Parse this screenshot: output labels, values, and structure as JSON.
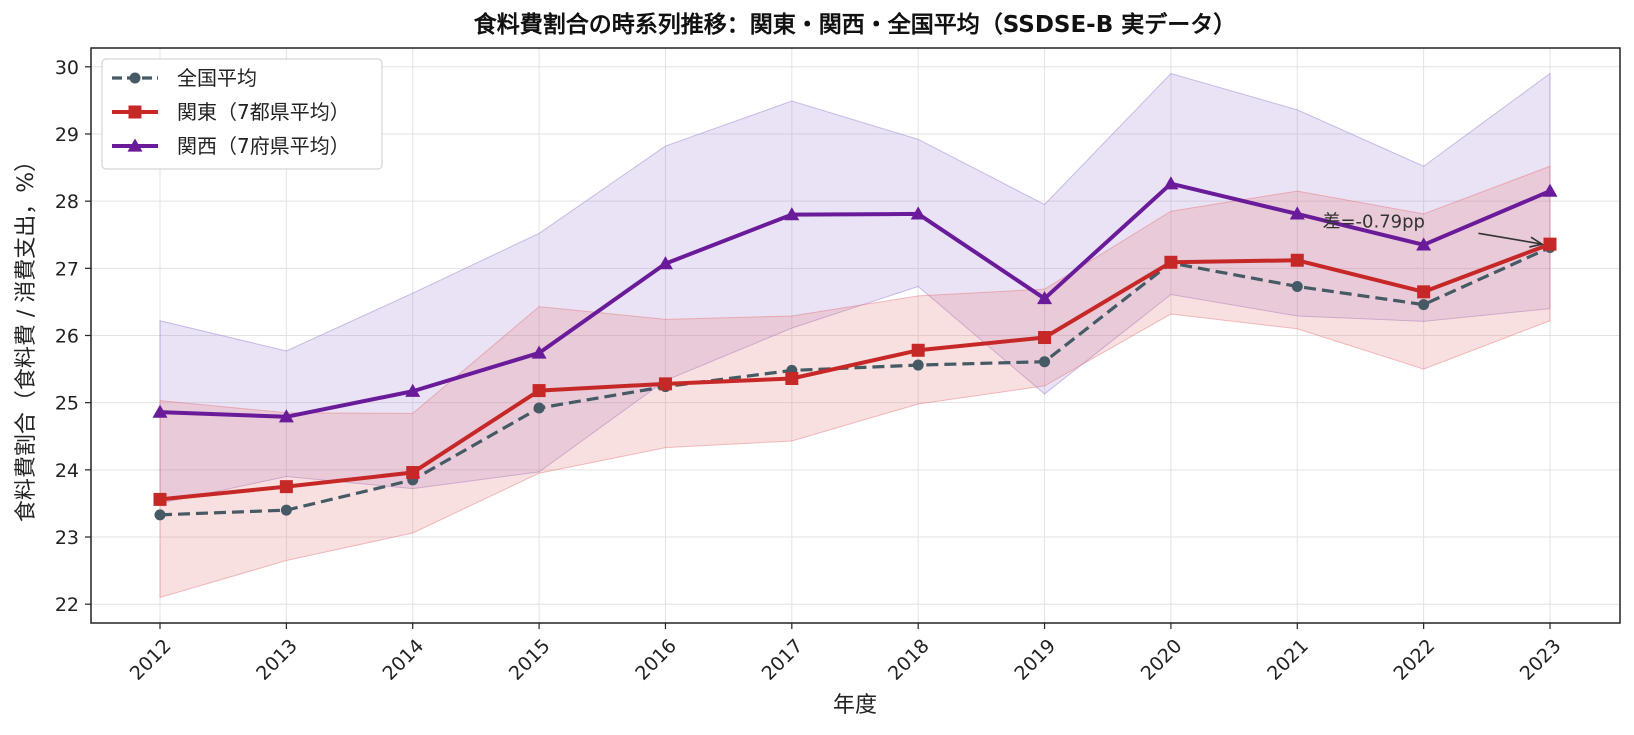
{
  "chart_data": {
    "type": "line",
    "title": "食料費割合の時系列推移：関東・関西・全国平均（SSDSE-B 実データ）",
    "xlabel": "年度",
    "ylabel": "食料費割合（食料費 / 消費支出，%）",
    "x": [
      "2012",
      "2013",
      "2014",
      "2015",
      "2016",
      "2017",
      "2018",
      "2019",
      "2020",
      "2021",
      "2022",
      "2023"
    ],
    "ylim": [
      21.72,
      30.28
    ],
    "yticks": [
      22,
      23,
      24,
      25,
      26,
      27,
      28,
      29,
      30
    ],
    "grid": true,
    "legend_position": "top-left",
    "series": [
      {
        "name": "全国平均",
        "color": "#455a64",
        "line_style": "dashed",
        "marker": "circle",
        "values": [
          23.33,
          23.4,
          23.85,
          24.92,
          25.24,
          25.48,
          25.56,
          25.61,
          27.08,
          26.73,
          26.46,
          27.31
        ]
      },
      {
        "name": "関東（7都県平均）",
        "color": "#c62828",
        "line_style": "solid",
        "marker": "square",
        "values": [
          23.56,
          23.75,
          23.96,
          25.18,
          25.28,
          25.36,
          25.78,
          25.97,
          27.09,
          27.12,
          26.65,
          27.36
        ],
        "band_low": [
          22.1,
          22.65,
          23.06,
          23.95,
          24.33,
          24.43,
          24.98,
          25.25,
          26.32,
          26.1,
          25.5,
          26.22
        ],
        "band_high": [
          25.03,
          24.85,
          24.84,
          26.43,
          26.24,
          26.29,
          26.59,
          26.69,
          27.85,
          28.15,
          27.81,
          28.52
        ]
      },
      {
        "name": "関西（7府県平均）",
        "color": "#6a1b9a",
        "line_style": "solid",
        "marker": "triangle",
        "values": [
          24.86,
          24.79,
          25.17,
          25.74,
          27.07,
          27.8,
          27.81,
          26.55,
          28.26,
          27.81,
          27.35,
          28.15
        ],
        "band_low": [
          23.5,
          23.9,
          23.72,
          23.97,
          25.33,
          26.11,
          26.73,
          25.13,
          26.61,
          26.29,
          26.21,
          26.4
        ],
        "band_high": [
          26.22,
          25.77,
          26.63,
          27.52,
          28.82,
          29.49,
          28.92,
          27.95,
          29.9,
          29.36,
          28.52,
          29.9
        ]
      }
    ],
    "annotation": {
      "text": "差=-0.79pp",
      "target_x": "2023",
      "target_y": 27.36,
      "text_x": "2021.5",
      "text_y": 27.7
    }
  }
}
